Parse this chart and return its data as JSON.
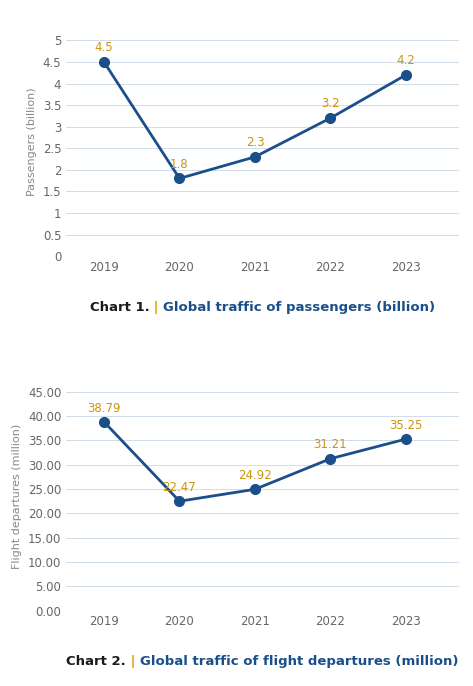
{
  "chart1": {
    "years": [
      2019,
      2020,
      2021,
      2022,
      2023
    ],
    "values": [
      4.5,
      1.8,
      2.3,
      3.2,
      4.2
    ],
    "labels": [
      "4.5",
      "1.8",
      "2.3",
      "3.2",
      "4.2"
    ],
    "ylabel": "Passengers (billion)",
    "yticks": [
      0,
      0.5,
      1,
      1.5,
      2,
      2.5,
      3,
      3.5,
      4,
      4.5,
      5
    ],
    "ylim": [
      0,
      5.3
    ],
    "title_bold": "Chart 1.",
    "title_sep": " | ",
    "title_rest": "Global traffic of passengers (billion)"
  },
  "chart2": {
    "years": [
      2019,
      2020,
      2021,
      2022,
      2023
    ],
    "values": [
      38.79,
      22.47,
      24.92,
      31.21,
      35.25
    ],
    "labels": [
      "38.79",
      "22.47",
      "24.92",
      "31.21",
      "35.25"
    ],
    "ylabel": "Flight departures (million)",
    "yticks": [
      0.0,
      5.0,
      10.0,
      15.0,
      20.0,
      25.0,
      30.0,
      35.0,
      40.0,
      45.0
    ],
    "ylim": [
      0,
      47
    ],
    "title_bold": "Chart 2.",
    "title_sep": " | ",
    "title_rest": "Global traffic of flight departures (million)"
  },
  "line_color": "#1a4f8a",
  "marker_color": "#1a4f8a",
  "label_color": "#c8960c",
  "grid_color": "#d0dce8",
  "bg_color": "#ffffff",
  "title_color_bold": "#1a1a1a",
  "title_color_pipe": "#e8a000",
  "title_color_rest": "#1a4f8a",
  "axis_label_color": "#888888",
  "tick_label_color": "#666666",
  "font_size_tick": 8.5,
  "font_size_label": 8,
  "font_size_annot": 8.5,
  "font_size_title": 9.5,
  "marker_size": 7,
  "line_width": 2.0
}
